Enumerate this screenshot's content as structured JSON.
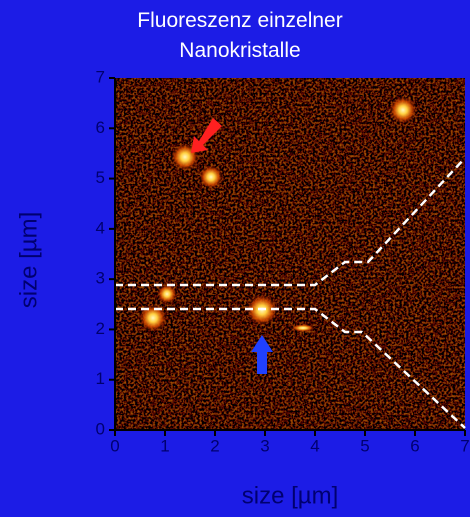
{
  "chart_data": {
    "type": "image",
    "title": "Fluoreszenz einzelner Nanokristalle",
    "xlabel": "size [µm]",
    "ylabel": "size [µm]",
    "xlim": [
      0,
      7
    ],
    "ylim": [
      0,
      7
    ],
    "xticks": [
      0,
      1,
      2,
      3,
      4,
      5,
      6,
      7
    ],
    "yticks": [
      0,
      1,
      2,
      3,
      4,
      5,
      6,
      7
    ]
  }
}
